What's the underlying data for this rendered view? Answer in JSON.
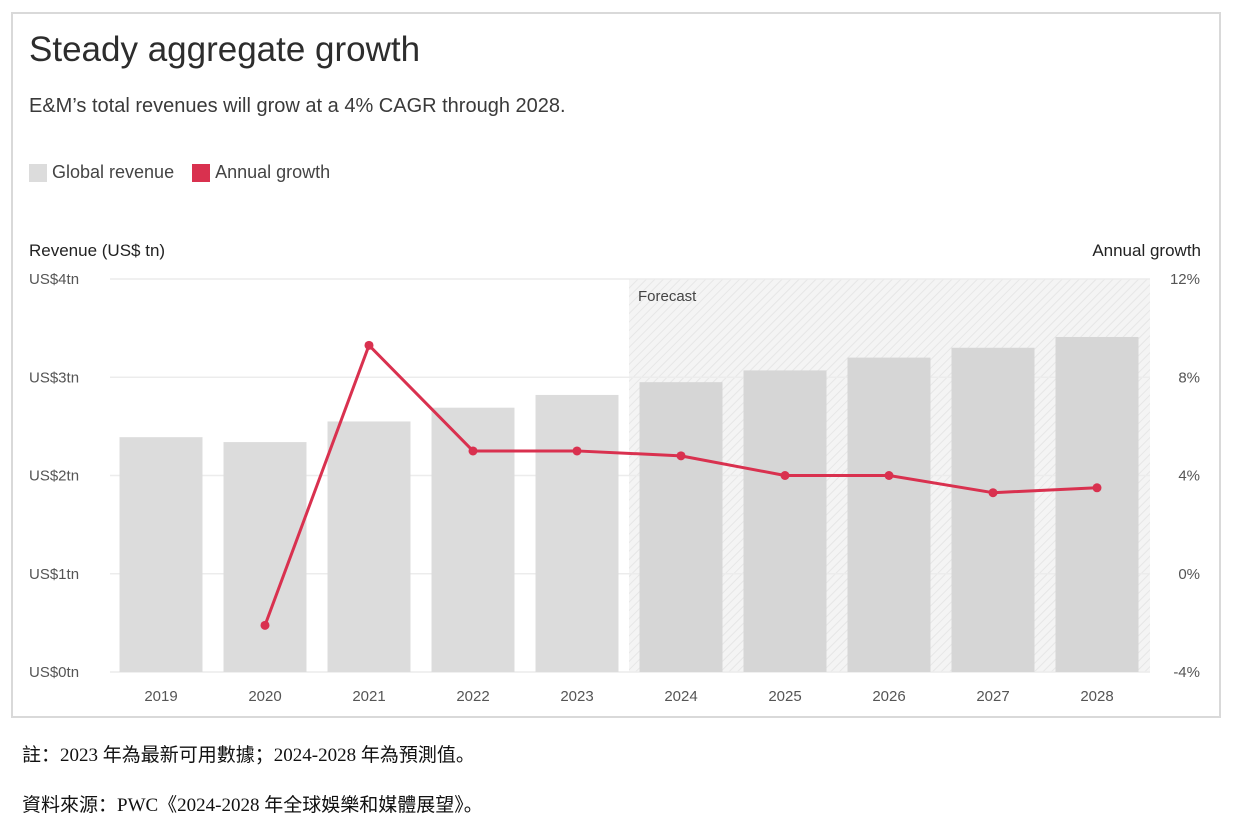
{
  "title": "Steady aggregate growth",
  "subtitle": "E&M’s total revenues will grow at a 4% CAGR through 2028.",
  "legend": [
    {
      "label": "Global revenue",
      "color": "#dcdcdc"
    },
    {
      "label": "Annual growth",
      "color": "#d9314f"
    }
  ],
  "notes": {
    "note": "註：2023 年為最新可用數據；2024-2028 年為預測值。",
    "source": "資料來源：PWC《2024-2028 年全球娛樂和媒體展望》。"
  },
  "chart_data": {
    "type": "bar+line",
    "title": "Steady aggregate growth",
    "subtitle": "E&M’s total revenues will grow at a 4% CAGR through 2028.",
    "ylabel_left": "Revenue (US$ tn)",
    "ylabel_right": "Annual growth",
    "ylim_left": [
      0,
      4
    ],
    "ylim_right": [
      -4,
      12
    ],
    "yticks_left": [
      "US$0tn",
      "US$1tn",
      "US$2tn",
      "US$3tn",
      "US$4tn"
    ],
    "yticks_right": [
      "-4%",
      "0%",
      "4%",
      "8%",
      "12%"
    ],
    "categories": [
      "2019",
      "2020",
      "2021",
      "2022",
      "2023",
      "2024",
      "2025",
      "2026",
      "2027",
      "2028"
    ],
    "forecast_label": "Forecast",
    "forecast_from": "2024",
    "grid": true,
    "legend_position": "top-left",
    "series": [
      {
        "name": "Global revenue",
        "type": "bar",
        "axis": "left",
        "color": "#dcdcdc",
        "values": [
          2.39,
          2.34,
          2.55,
          2.69,
          2.82,
          2.95,
          3.07,
          3.2,
          3.3,
          3.41
        ]
      },
      {
        "name": "Annual growth",
        "type": "line",
        "axis": "right",
        "color": "#d9314f",
        "values": [
          null,
          -2.1,
          9.3,
          5.0,
          5.0,
          4.8,
          4.0,
          4.0,
          3.3,
          3.5
        ]
      }
    ]
  }
}
